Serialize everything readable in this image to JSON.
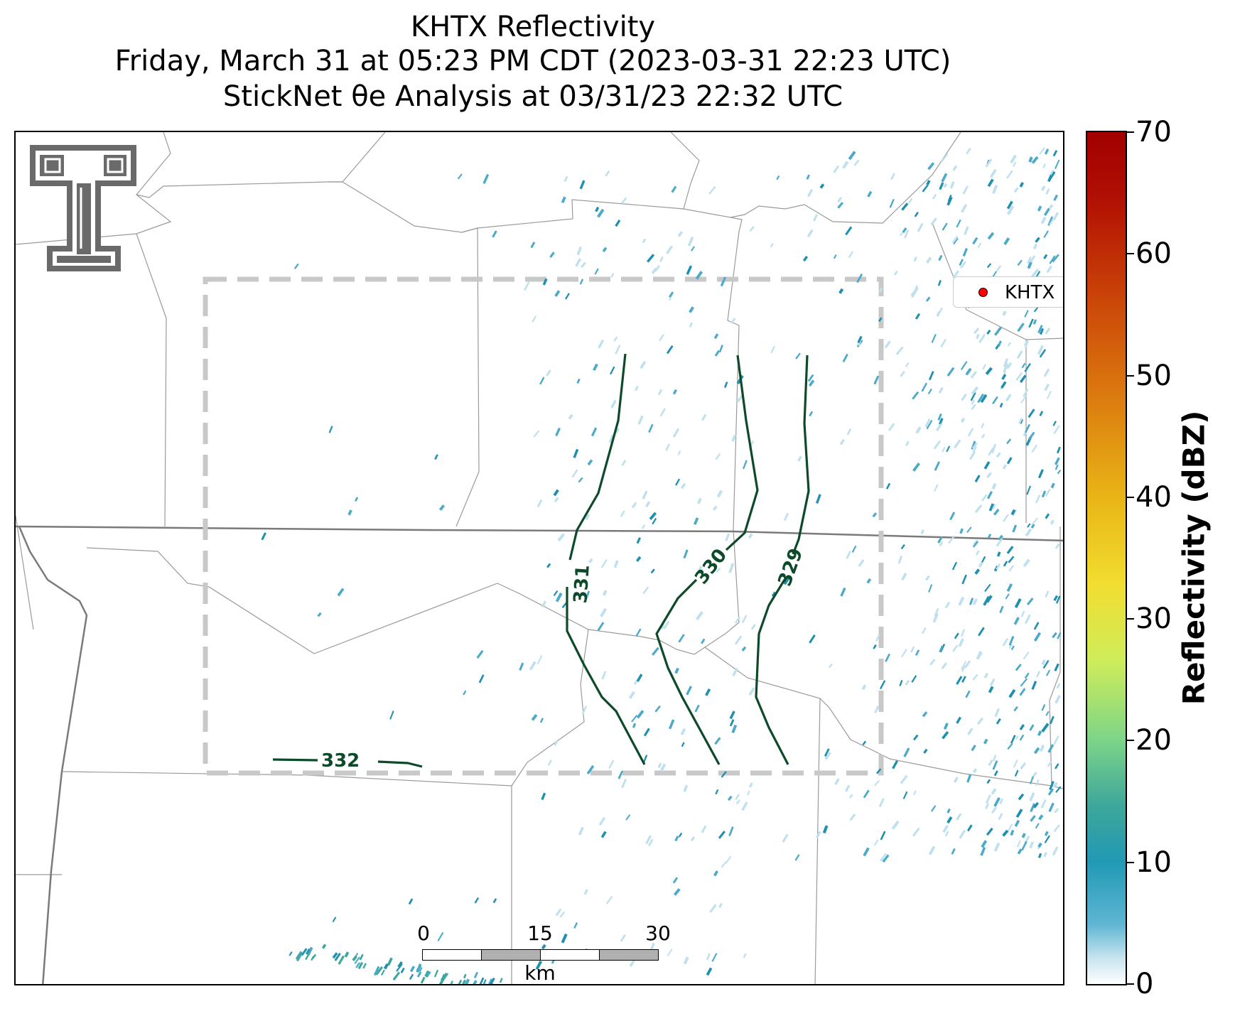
{
  "title": {
    "line1": "KHTX Reflectivity",
    "line2": "Friday, March 31 at 05:23 PM CDT (2023-03-31 22:23 UTC)",
    "line3": "StickNet θe Analysis at 03/31/23 22:32 UTC"
  },
  "legend": {
    "label": "KHTX",
    "marker_color": "#ff0000"
  },
  "colorbar": {
    "title": "Reflectivity (dBZ)",
    "ticks": [
      "0",
      "10",
      "20",
      "30",
      "40",
      "50",
      "60",
      "70"
    ],
    "range": [
      0,
      70
    ]
  },
  "contours": [
    {
      "label": "332"
    },
    {
      "label": "331"
    },
    {
      "label": "330"
    },
    {
      "label": "329"
    }
  ],
  "scalebar": {
    "ticks": [
      "0",
      "15",
      "30"
    ],
    "unit": "km"
  },
  "logo": {
    "icon": "texas-tech-double-t-logo"
  },
  "colors": {
    "contour": "#0d4a2a",
    "analysis_box": "#c8c8c8",
    "county_lines": "#9a9a9a",
    "state_line": "#7a7a7a",
    "echo_light": "#bfe0ee",
    "echo_mid": "#4ba9c9",
    "echo_dark": "#1f8fb0",
    "echo_green": "#3ea79a"
  }
}
